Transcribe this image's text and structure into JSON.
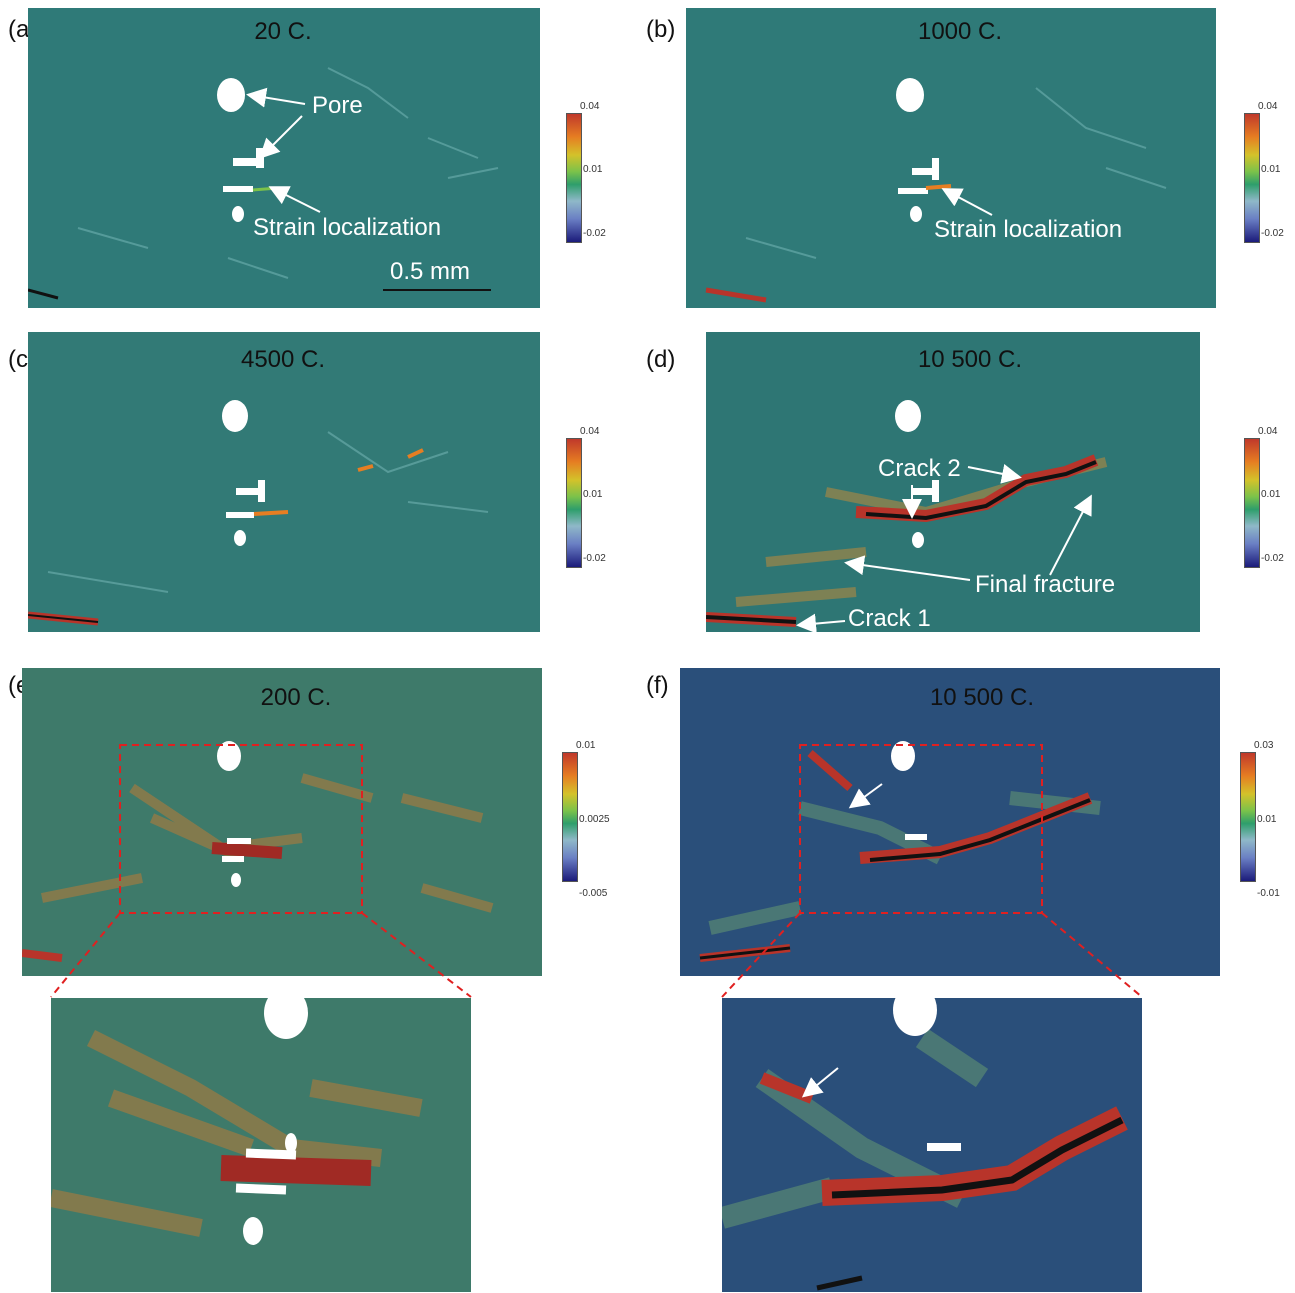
{
  "panels": {
    "a": {
      "label": "(a)",
      "title": "20 C."
    },
    "b": {
      "label": "(b)",
      "title": "1000 C."
    },
    "c": {
      "label": "(c)",
      "title": "4500 C."
    },
    "d": {
      "label": "(d)",
      "title": "10 500 C."
    },
    "e": {
      "label": "(e)",
      "title": "200 C."
    },
    "f": {
      "label": "(f)",
      "title": "10 500 C."
    }
  },
  "annotations": {
    "pore": "Pore",
    "strain_a": "Strain localization",
    "strain_b": "Strain localization",
    "scale": "0.5 mm",
    "crack2": "Crack 2",
    "final_fracture": "Final fracture",
    "crack1": "Crack 1"
  },
  "colorbars": {
    "a": {
      "max": "0.04",
      "mid": "0.01",
      "min": "-0.02"
    },
    "b": {
      "max": "0.04",
      "mid": "0.01",
      "min": "-0.02"
    },
    "c": {
      "max": "0.04",
      "mid": "0.01",
      "min": "-0.02"
    },
    "d": {
      "max": "0.04",
      "mid": "0.01",
      "min": "-0.02"
    },
    "e": {
      "max": "0.01",
      "mid": "0.0025",
      "min": "-0.005"
    },
    "f": {
      "max": "0.03",
      "mid": "0.01",
      "min": "-0.01"
    }
  },
  "colors": {
    "strain_base": "#2f7a78",
    "strain_high": "#b8342a",
    "crack": "#111111",
    "zoom_box": "#e02020",
    "annotation_text": "#ffffff"
  }
}
